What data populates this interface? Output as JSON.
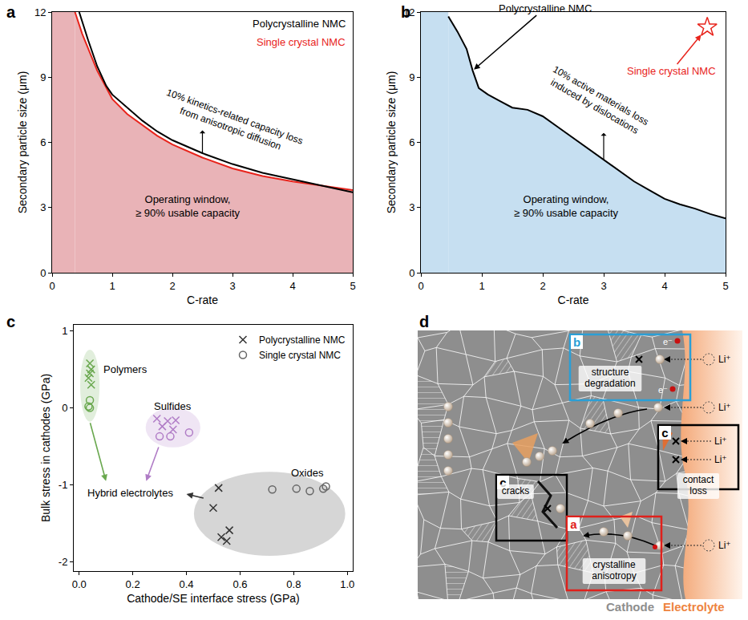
{
  "chart_data": [
    {
      "panel_label": "a",
      "type": "line",
      "x_label": "C-rate",
      "y_label": "Secondary particle size (μm)",
      "xlim": [
        0,
        5
      ],
      "ylim": [
        0,
        12
      ],
      "xticks": [
        0,
        1,
        2,
        3,
        4,
        5
      ],
      "yticks": [
        0,
        3,
        6,
        9,
        12
      ],
      "grid": false,
      "legend": "top right",
      "annotations": [
        [
          "10% kinetics-related capacity loss",
          "from anisotropic diffusion"
        ],
        [
          "Operating window,",
          "≥ 90% usable capacity"
        ]
      ],
      "series": [
        {
          "name": "Polycrystalline NMC",
          "color": "#000000",
          "x": [
            0.45,
            0.6,
            0.75,
            0.9,
            1.0,
            1.25,
            1.5,
            1.75,
            2.0,
            2.5,
            3.0,
            3.5,
            4.0,
            4.5,
            5.0
          ],
          "values": [
            12,
            10.7,
            9.5,
            8.6,
            8.2,
            7.6,
            7.0,
            6.5,
            6.1,
            5.5,
            5.0,
            4.6,
            4.3,
            4.0,
            3.7
          ]
        },
        {
          "name": "Single crystal NMC",
          "color": "#e8241c",
          "x": [
            0.38,
            0.5,
            0.75,
            0.9,
            1.0,
            1.25,
            1.5,
            1.75,
            2.0,
            2.5,
            3.0,
            3.5,
            4.0,
            4.5,
            5.0
          ],
          "values": [
            12,
            11.0,
            9.3,
            8.5,
            8.0,
            7.3,
            6.8,
            6.3,
            5.9,
            5.3,
            4.8,
            4.45,
            4.2,
            4.0,
            3.8
          ]
        }
      ]
    },
    {
      "panel_label": "b",
      "type": "line",
      "x_label": "C-rate",
      "y_label": "Secondary particle size (μm)",
      "xlim": [
        0,
        5
      ],
      "ylim": [
        0,
        12
      ],
      "xticks": [
        0,
        1,
        2,
        3,
        4,
        5
      ],
      "yticks": [
        0,
        3,
        6,
        9,
        12
      ],
      "grid": false,
      "annotations": [
        [
          "10% active materials loss",
          "induced by dislocations"
        ],
        [
          "Operating window,",
          "≥ 90% usable capacity"
        ]
      ],
      "series": [
        {
          "name": "Polycrystalline NMC",
          "color": "#000000",
          "type": "line",
          "x": [
            0.45,
            0.6,
            0.75,
            0.85,
            0.95,
            1.1,
            1.3,
            1.5,
            1.75,
            2.0,
            2.25,
            2.5,
            2.75,
            3.0,
            3.25,
            3.5,
            3.75,
            4.0,
            4.25,
            4.5,
            4.75,
            5.0
          ],
          "values": [
            11.8,
            11.1,
            10.3,
            9.3,
            8.5,
            8.2,
            7.9,
            7.6,
            7.5,
            7.2,
            6.7,
            6.2,
            5.7,
            5.2,
            4.7,
            4.2,
            3.8,
            3.4,
            3.15,
            2.95,
            2.7,
            2.5
          ]
        },
        {
          "name": "Single crystal NMC",
          "color": "#e8241c",
          "type": "scatter",
          "marker": "star-open",
          "x": [
            4.7
          ],
          "values": [
            11.3
          ]
        }
      ]
    },
    {
      "panel_label": "c",
      "type": "scatter",
      "x_label": "Cathode/SE interface stress (GPa)",
      "y_label": "Bulk stress in cathodes (GPa)",
      "xlim": [
        -0.02,
        1.02
      ],
      "ylim": [
        -2.12,
        1.08
      ],
      "xticks": [
        {
          "value": 0,
          "label": "0.0"
        },
        {
          "value": 0.2,
          "label": "0.2"
        },
        {
          "value": 0.4,
          "label": "0.4"
        },
        {
          "value": 0.6,
          "label": "0.6"
        },
        {
          "value": 0.8,
          "label": "0.8"
        },
        {
          "value": 1,
          "label": "1.0"
        }
      ],
      "yticks": [
        -2,
        -1,
        0,
        1
      ],
      "grid": false,
      "legend": "top right",
      "groups": [
        {
          "name": "Polymers",
          "color": "#6aa84f"
        },
        {
          "name": "Sulfides",
          "color": "#b07cc6"
        },
        {
          "name": "Oxides",
          "color": "#333333"
        }
      ],
      "annotations": [
        "Hybrid electrolytes"
      ],
      "series": [
        {
          "name": "Polycrystalline NMC",
          "marker": "x",
          "x": [
            0.52,
            0.5,
            0.53,
            0.55,
            0.56,
            0.29,
            0.33,
            0.36,
            0.31,
            0.35,
            0.04,
            0.045,
            0.04,
            0.035,
            0.045
          ],
          "values": [
            -1.04,
            -1.3,
            -1.68,
            -1.73,
            -1.59,
            -0.14,
            -0.17,
            -0.16,
            -0.24,
            -0.28,
            0.58,
            0.5,
            0.45,
            0.39,
            0.3
          ],
          "colors": [
            "#333333",
            "#333333",
            "#333333",
            "#333333",
            "#333333",
            "#b07cc6",
            "#b07cc6",
            "#b07cc6",
            "#b07cc6",
            "#b07cc6",
            "#6aa84f",
            "#6aa84f",
            "#6aa84f",
            "#6aa84f",
            "#6aa84f"
          ],
          "groups": [
            "Oxides",
            "Oxides",
            "Oxides",
            "Oxides",
            "Oxides",
            "Sulfides",
            "Sulfides",
            "Sulfides",
            "Sulfides",
            "Sulfides",
            "Polymers",
            "Polymers",
            "Polymers",
            "Polymers",
            "Polymers"
          ]
        },
        {
          "name": "Single crystal NMC",
          "marker": "circle-open",
          "x": [
            0.72,
            0.81,
            0.86,
            0.91,
            0.92,
            0.3,
            0.34,
            0.41,
            0.04,
            0.035,
            0.04
          ],
          "values": [
            -1.06,
            -1.05,
            -1.08,
            -1.05,
            -1.02,
            -0.37,
            -0.37,
            -0.32,
            0.1,
            0.02,
            0.0
          ],
          "colors": [
            "#666666",
            "#666666",
            "#666666",
            "#666666",
            "#666666",
            "#b07cc6",
            "#b07cc6",
            "#b07cc6",
            "#6aa84f",
            "#6aa84f",
            "#6aa84f"
          ],
          "groups": [
            "Oxides",
            "Oxides",
            "Oxides",
            "Oxides",
            "Oxides",
            "Sulfides",
            "Sulfides",
            "Sulfides",
            "Polymers",
            "Polymers",
            "Polymers"
          ]
        }
      ]
    }
  ],
  "diagram": {
    "panel_label": "d",
    "regions": [
      {
        "text": "Cathode",
        "color": "#8e8e8e"
      },
      {
        "text": "Electrolyte",
        "color": "#ee8440"
      }
    ],
    "boxes": [
      {
        "label": "b",
        "text": "structure degradation",
        "color": "#2a9fd6"
      },
      {
        "label": "c",
        "text": "contact loss",
        "color": "#000000"
      },
      {
        "label": "c",
        "text": "cracks",
        "color": "#000000"
      },
      {
        "label": "a",
        "text": "crystalline anisotropy",
        "color": "#e0201b"
      }
    ],
    "ion_labels": [
      "Li⁺",
      "Li⁺",
      "Li⁺",
      "Li⁺",
      "Li⁺"
    ],
    "electron_labels": [
      "e⁻",
      "e⁻"
    ]
  }
}
